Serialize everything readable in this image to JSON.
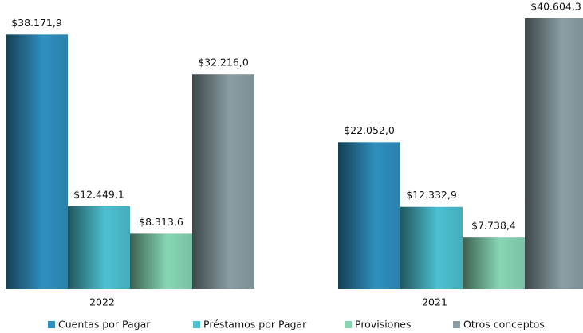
{
  "chart_data": {
    "type": "bar",
    "categories": [
      "2022",
      "2021"
    ],
    "series": [
      {
        "name": "Cuentas por Pagar",
        "color": "#2f8fbf",
        "values": [
          38171.9,
          22052.0
        ],
        "value_labels": [
          "$38.171,9",
          "$22.052,0"
        ]
      },
      {
        "name": "Préstamos por Pagar",
        "color": "#4cc0d0",
        "values": [
          12449.1,
          12332.9
        ],
        "value_labels": [
          "$12.449,1",
          "$12.332,9"
        ]
      },
      {
        "name": "Provisiones",
        "color": "#86d6b4",
        "values": [
          8313.6,
          7738.4
        ],
        "value_labels": [
          "$8.313,6",
          "$7.738,4"
        ]
      },
      {
        "name": "Otros conceptos",
        "color": "#8a9ea3",
        "values": [
          32216.0,
          40604.3
        ],
        "value_labels": [
          "$32.216,0",
          "$40.604,3"
        ]
      }
    ],
    "legend": "bottom"
  }
}
